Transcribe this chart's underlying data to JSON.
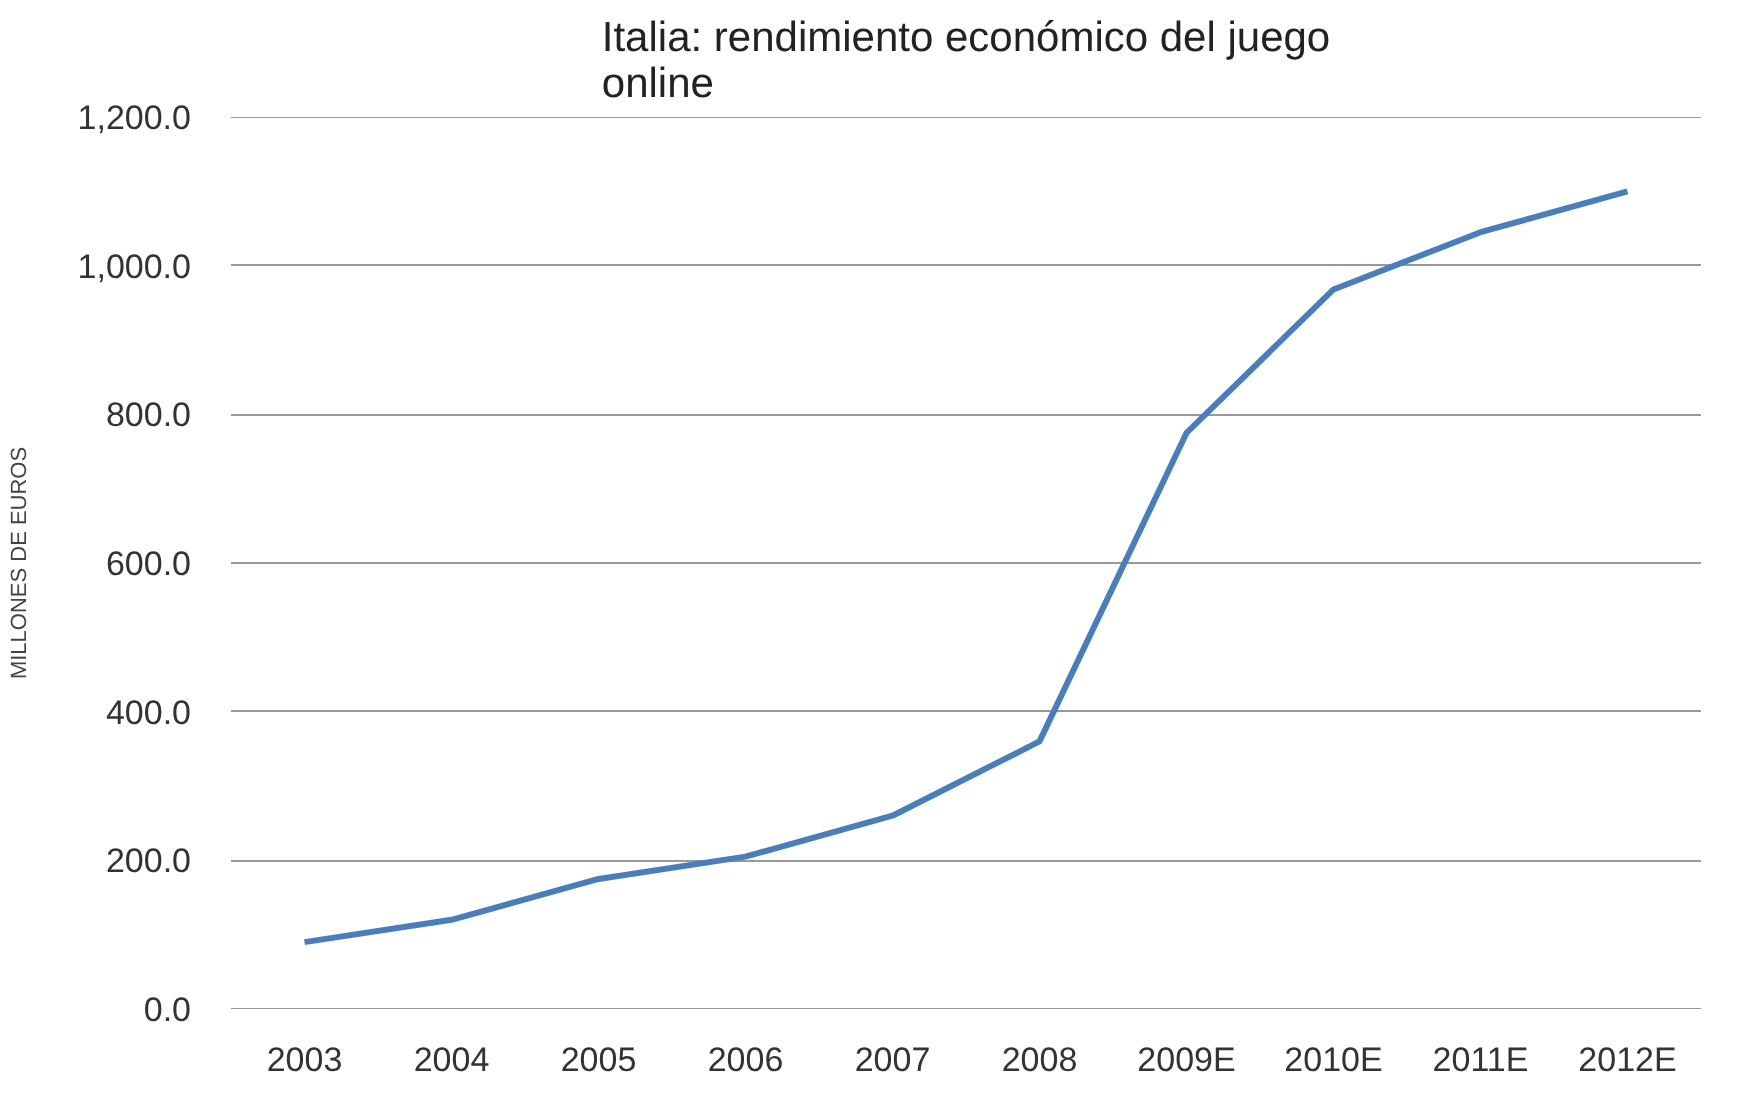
{
  "chart_data": {
    "type": "line",
    "title": "Italia: rendimiento económico del juego\nonline",
    "ylabel": "MILLONES DE EUROS",
    "categories": [
      "2003",
      "2004",
      "2005",
      "2006",
      "2007",
      "2008",
      "2009E",
      "2010E",
      "2011E",
      "2012E"
    ],
    "series": [
      {
        "color": "#4a7ebb",
        "values": [
          90,
          120,
          175,
          205,
          260,
          360,
          775,
          968,
          1045,
          1100
        ]
      }
    ],
    "ylim": [
      0,
      1200
    ],
    "yticks": [
      {
        "value": 0,
        "label": "0.0"
      },
      {
        "value": 200,
        "label": "200.0"
      },
      {
        "value": 400,
        "label": "400.0"
      },
      {
        "value": 600,
        "label": "600.0"
      },
      {
        "value": 800,
        "label": "800.0"
      },
      {
        "value": 1000,
        "label": "1,000.0"
      },
      {
        "value": 1200,
        "label": "1,200.0"
      }
    ],
    "grid": "y",
    "marker": "none",
    "line_style": "solid"
  }
}
